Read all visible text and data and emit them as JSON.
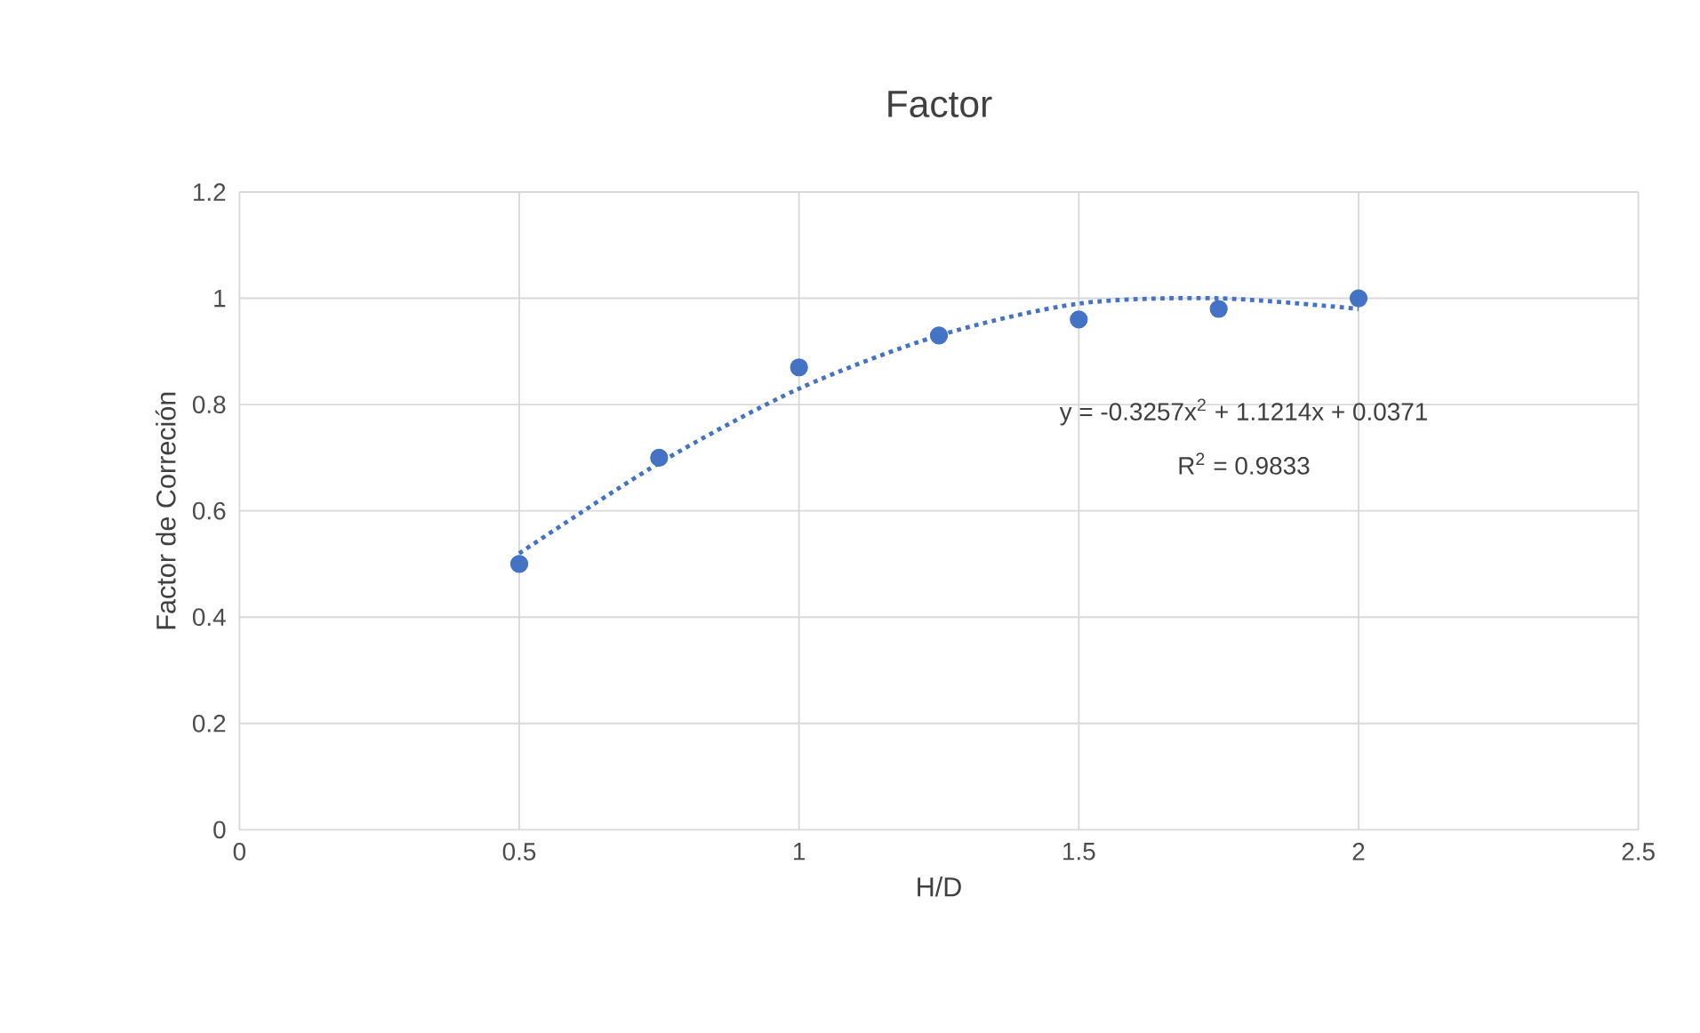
{
  "chart_data": {
    "type": "scatter",
    "title": "Factor",
    "xlabel": "H/D",
    "ylabel": "Factor de Correción",
    "series": [
      {
        "color": "#4472c4",
        "marker": "circle",
        "x": [
          0.5,
          0.75,
          1,
          1.25,
          1.5,
          1.75,
          2
        ],
        "values": [
          0.5,
          0.7,
          0.87,
          0.93,
          0.96,
          0.98,
          1.0
        ]
      },
      {
        "type": "line",
        "color": "#4472c4",
        "line_style": "dotted",
        "marker": "none",
        "x": [
          0.5,
          0.75,
          1,
          1.25,
          1.5,
          1.75,
          2
        ],
        "values": [
          0.52,
          0.69,
          0.83,
          0.93,
          0.99,
          1.0,
          0.98
        ]
      }
    ],
    "xlim": [
      0,
      2.5
    ],
    "xticks": [
      0,
      0.5,
      1,
      1.5,
      2,
      2.5
    ],
    "ylim": [
      0,
      1.2
    ],
    "yticks": [
      0,
      0.2,
      0.4,
      0.6,
      0.8,
      1,
      1.2
    ],
    "grid": true,
    "annotations": [
      "y = -0.3257x$^{2}$ + 1.1214x + 0.0371",
      "R$^{2}$ = 0.9833"
    ]
  }
}
